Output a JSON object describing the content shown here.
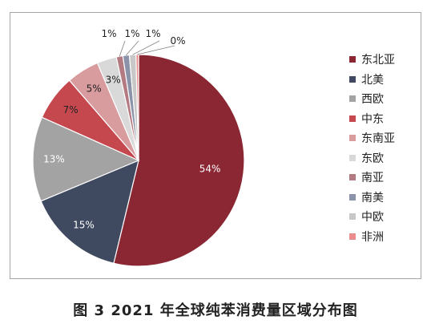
{
  "caption": "图 3  2021 年全球纯苯消费量区域分布图",
  "chart_data": {
    "type": "pie",
    "title": "",
    "start_angle_deg": 0,
    "direction": "clockwise",
    "legend_position": "right",
    "slices": [
      {
        "name": "东北亚",
        "value": 54,
        "label": "54%",
        "color": "#8b2633",
        "label_placement": "inside",
        "label_color": "#ffffff"
      },
      {
        "name": "北美",
        "value": 15,
        "label": "15%",
        "color": "#3f4a60",
        "label_placement": "inside",
        "label_color": "#ffffff"
      },
      {
        "name": "西欧",
        "value": 13,
        "label": "13%",
        "color": "#a3a3a3",
        "label_placement": "inside",
        "label_color": "#ffffff"
      },
      {
        "name": "中东",
        "value": 7,
        "label": "7%",
        "color": "#c6484f",
        "label_placement": "inside",
        "label_color": "#222222"
      },
      {
        "name": "东南亚",
        "value": 5,
        "label": "5%",
        "color": "#d89b9e",
        "label_placement": "inside",
        "label_color": "#222222"
      },
      {
        "name": "东欧",
        "value": 3,
        "label": "3%",
        "color": "#d9d9d9",
        "label_placement": "inside",
        "label_color": "#222222"
      },
      {
        "name": "南亚",
        "value": 1,
        "label": "1%",
        "color": "#b47a82",
        "label_placement": "outside",
        "label_color": "#222222"
      },
      {
        "name": "南美",
        "value": 1,
        "label": "1%",
        "color": "#8b93a8",
        "label_placement": "outside",
        "label_color": "#222222"
      },
      {
        "name": "中欧",
        "value": 1,
        "label": "1%",
        "color": "#c8c8c8",
        "label_placement": "outside",
        "label_color": "#222222"
      },
      {
        "name": "非洲",
        "value": 0,
        "label": "0%",
        "color": "#e88c8c",
        "label_placement": "outside",
        "label_color": "#222222"
      }
    ]
  }
}
